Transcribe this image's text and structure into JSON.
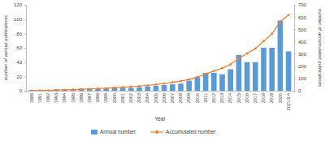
{
  "chart_data": {
    "type": "bar",
    "x_label": "Year",
    "y_label": "number of annual publications",
    "y2_label": "number of accumulated publications",
    "categories": [
      "1989",
      "1991",
      "1992",
      "1993",
      "1994",
      "1995",
      "1996",
      "1997",
      "1998",
      "1999",
      "2000",
      "2001",
      "2002",
      "2003",
      "2004",
      "2005",
      "2006",
      "2007",
      "2008",
      "2009",
      "2010",
      "2011",
      "2012",
      "2013",
      "2014",
      "2015",
      "2016",
      "2017",
      "2018",
      "2019",
      "2020",
      "2021.8.4"
    ],
    "series": [
      {
        "name": "Annual number",
        "type": "bar",
        "color": "#5b9bd5",
        "values": [
          1,
          1,
          1,
          2,
          2,
          2,
          3,
          3,
          3,
          3,
          4,
          4,
          4,
          5,
          6,
          7,
          8,
          9,
          10,
          14,
          19,
          25,
          25,
          23,
          30,
          50,
          40,
          40,
          60,
          60,
          98,
          55
        ]
      },
      {
        "name": "Accumulated number",
        "type": "line",
        "axis": "y2",
        "color": "#ed7d31",
        "marker": "circle",
        "values": [
          1,
          2,
          3,
          5,
          7,
          9,
          12,
          15,
          18,
          21,
          25,
          29,
          33,
          38,
          44,
          51,
          59,
          68,
          78,
          92,
          111,
          136,
          161,
          184,
          214,
          264,
          304,
          344,
          404,
          464,
          562,
          617
        ]
      }
    ],
    "ylim": [
      0,
      120
    ],
    "yticks": [
      0,
      20,
      40,
      60,
      80,
      100,
      120
    ],
    "y2lim": [
      0,
      700
    ],
    "y2ticks": [
      0,
      100,
      200,
      300,
      400,
      500,
      600,
      700
    ],
    "grid": false,
    "legend": "bottom"
  }
}
